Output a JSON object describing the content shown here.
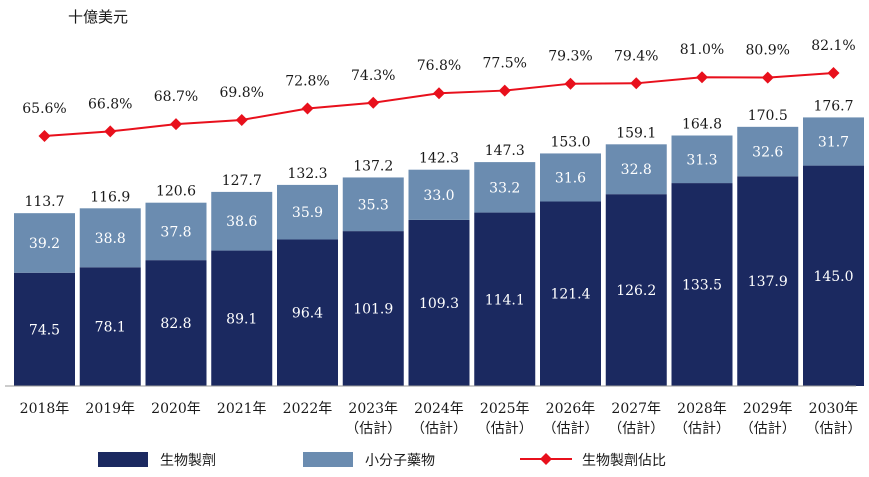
{
  "chart_data": {
    "type": "bar",
    "subtype": "stacked_bar_with_line",
    "unit_label": "十億美元",
    "categories": [
      [
        "2018年"
      ],
      [
        "2019年"
      ],
      [
        "2020年"
      ],
      [
        "2021年"
      ],
      [
        "2022年"
      ],
      [
        "2023年",
        "（估計）"
      ],
      [
        "2024年",
        "（估計）"
      ],
      [
        "2025年",
        "（估計）"
      ],
      [
        "2026年",
        "（估計）"
      ],
      [
        "2027年",
        "（估計）"
      ],
      [
        "2028年",
        "（估計）"
      ],
      [
        "2029年",
        "（估計）"
      ],
      [
        "2030年",
        "（估計）"
      ]
    ],
    "series": [
      {
        "name": "生物製劑",
        "type": "bar",
        "color": "#1b2960",
        "values": [
          74.5,
          78.1,
          82.8,
          89.1,
          96.4,
          101.9,
          109.3,
          114.1,
          121.4,
          126.2,
          133.5,
          137.9,
          145.0
        ]
      },
      {
        "name": "小分子藥物",
        "type": "bar",
        "color": "#6b8cb0",
        "values": [
          39.2,
          38.8,
          37.8,
          38.6,
          35.9,
          35.3,
          33.0,
          33.2,
          31.6,
          32.8,
          31.3,
          32.6,
          31.7
        ]
      },
      {
        "name": "生物製劑佔比",
        "type": "line",
        "color": "#e8101c",
        "values": [
          "65.6%",
          "66.8%",
          "68.7%",
          "69.8%",
          "72.8%",
          "74.3%",
          "76.8%",
          "77.5%",
          "79.3%",
          "79.4%",
          "81.0%",
          "80.9%",
          "82.1%"
        ]
      }
    ],
    "totals": [
      "113.7",
      "116.9",
      "120.6",
      "127.7",
      "132.3",
      "137.2",
      "142.3",
      "147.3",
      "153.0",
      "159.1",
      "164.8",
      "170.5",
      "176.7"
    ],
    "legend_position": "bottom"
  }
}
